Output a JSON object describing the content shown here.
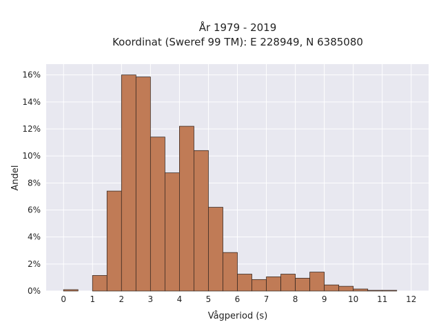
{
  "chart_data": {
    "type": "bar",
    "title_lines": [
      "År 1979 - 2019",
      "Koordinat (Sweref 99 TM): E 228949, N 6385080"
    ],
    "xlabel": "Vågperiod (s)",
    "ylabel": "Andel",
    "bin_width": 0.5,
    "bins": [
      {
        "start": 0.0,
        "value": 0.1
      },
      {
        "start": 0.5,
        "value": 0.0
      },
      {
        "start": 1.0,
        "value": 1.15
      },
      {
        "start": 1.5,
        "value": 7.4
      },
      {
        "start": 2.0,
        "value": 16.0
      },
      {
        "start": 2.5,
        "value": 15.85
      },
      {
        "start": 3.0,
        "value": 11.4
      },
      {
        "start": 3.5,
        "value": 8.75
      },
      {
        "start": 4.0,
        "value": 12.2
      },
      {
        "start": 4.5,
        "value": 10.4
      },
      {
        "start": 5.0,
        "value": 6.2
      },
      {
        "start": 5.5,
        "value": 2.85
      },
      {
        "start": 6.0,
        "value": 1.25
      },
      {
        "start": 6.5,
        "value": 0.85
      },
      {
        "start": 7.0,
        "value": 1.05
      },
      {
        "start": 7.5,
        "value": 1.25
      },
      {
        "start": 8.0,
        "value": 0.95
      },
      {
        "start": 8.5,
        "value": 1.4
      },
      {
        "start": 9.0,
        "value": 0.45
      },
      {
        "start": 9.5,
        "value": 0.35
      },
      {
        "start": 10.0,
        "value": 0.15
      },
      {
        "start": 10.5,
        "value": 0.05
      },
      {
        "start": 11.0,
        "value": 0.05
      }
    ],
    "xlim": [
      -0.6,
      12.6
    ],
    "ylim": [
      0,
      16.8
    ],
    "x_ticks": [
      0,
      1,
      2,
      3,
      4,
      5,
      6,
      7,
      8,
      9,
      10,
      11,
      12
    ],
    "y_ticks": [
      0,
      2,
      4,
      6,
      8,
      10,
      12,
      14,
      16
    ],
    "y_tick_suffix": "%",
    "grid": true,
    "colors": {
      "bar_fill": "#c07b56",
      "bar_edge": "#3a2a22",
      "plot_bg": "#e8e8f0",
      "grid": "#ffffff"
    }
  }
}
